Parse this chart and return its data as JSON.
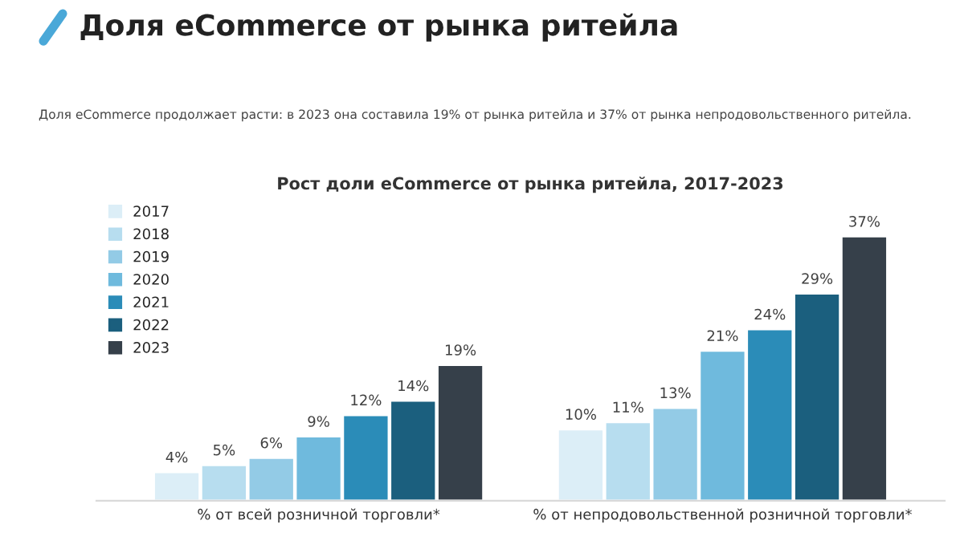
{
  "chart_data": {
    "type": "bar",
    "title": "Доля eCommerce от рынка ритейла",
    "subtitle": "Доля eCommerce продолжает расти: в 2023 она составила 19% от рынка ритейла и 37% от рынка непродовольственного ритейла.",
    "annotations": [
      "Рост доли eCommerce от рынка ритейла, 2017-2023"
    ],
    "categories": [
      "% от всей розничной торговли*",
      "% от непродовольственной розничной торговли*"
    ],
    "series": [
      {
        "name": "2017",
        "color": "#dceef7",
        "values": [
          4,
          10
        ],
        "value_labels": [
          "4%",
          "10%"
        ]
      },
      {
        "name": "2018",
        "color": "#b7ddef",
        "values": [
          5,
          11
        ],
        "value_labels": [
          "5%",
          "11%"
        ]
      },
      {
        "name": "2019",
        "color": "#93cbe6",
        "values": [
          6,
          13
        ],
        "value_labels": [
          "6%",
          "13%"
        ]
      },
      {
        "name": "2020",
        "color": "#6fbadd",
        "values": [
          9,
          21
        ],
        "value_labels": [
          "9%",
          "21%"
        ]
      },
      {
        "name": "2021",
        "color": "#2b8cb8",
        "values": [
          12,
          24
        ],
        "value_labels": [
          "12%",
          "24%"
        ]
      },
      {
        "name": "2022",
        "color": "#1b5f7e",
        "values": [
          14,
          29
        ],
        "value_labels": [
          "14%",
          "29%"
        ]
      },
      {
        "name": "2023",
        "color": "#36404a",
        "values": [
          19,
          37
        ],
        "value_labels": [
          "19%",
          "37%"
        ]
      }
    ],
    "legend": "top left",
    "grid": false
  }
}
